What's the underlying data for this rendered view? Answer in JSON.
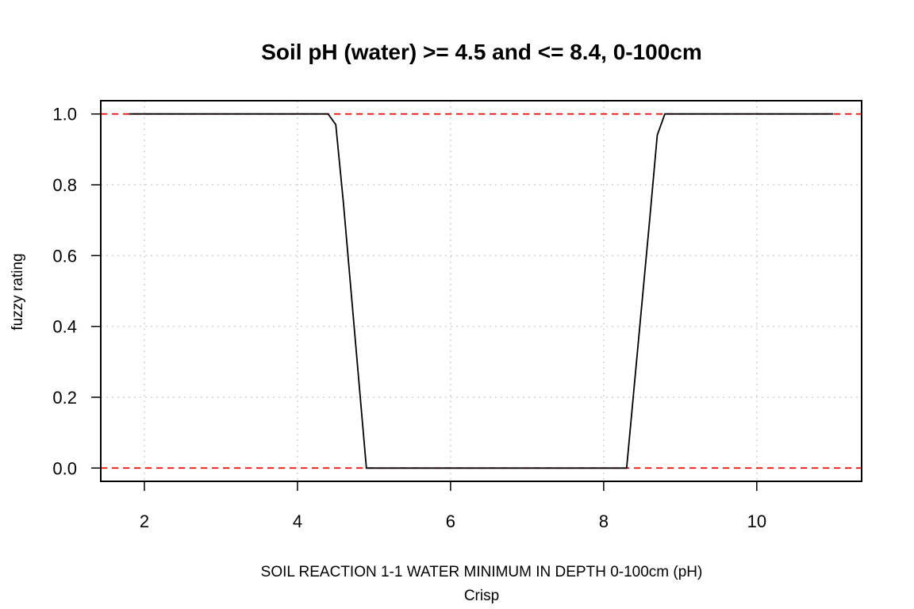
{
  "chart_data": {
    "type": "line",
    "title": "Soil pH (water) >= 4.5 and <= 8.4, 0-100cm",
    "xlabel": "SOIL REACTION 1-1 WATER MINIMUM IN DEPTH 0-100cm (pH)",
    "xlabel_sub": "Crisp",
    "ylabel": "fuzzy rating",
    "xlim": [
      1.43,
      11.37
    ],
    "ylim": [
      -0.0375,
      1.0375
    ],
    "xticks": [
      2,
      4,
      6,
      8,
      10
    ],
    "yticks": [
      0.0,
      0.2,
      0.4,
      0.6,
      0.8,
      1.0
    ],
    "xtick_labels": [
      "2",
      "4",
      "6",
      "8",
      "10"
    ],
    "ytick_labels": [
      "0.0",
      "0.2",
      "0.4",
      "0.6",
      "0.8",
      "1.0"
    ],
    "grid": true,
    "series": [
      {
        "x": [
          1.8,
          4.4,
          4.5,
          4.6,
          4.9,
          8.3,
          8.6,
          8.7,
          8.8,
          11.0
        ],
        "y": [
          1.0,
          1.0,
          0.97,
          0.75,
          0.0,
          0.0,
          0.7,
          0.94,
          1.0,
          1.0
        ],
        "color": "#000000"
      }
    ],
    "reference_lines": [
      {
        "y": 1.0,
        "color": "#ff0000",
        "style": "dashed"
      },
      {
        "y": 0.0,
        "color": "#ff0000",
        "style": "dashed"
      }
    ]
  }
}
